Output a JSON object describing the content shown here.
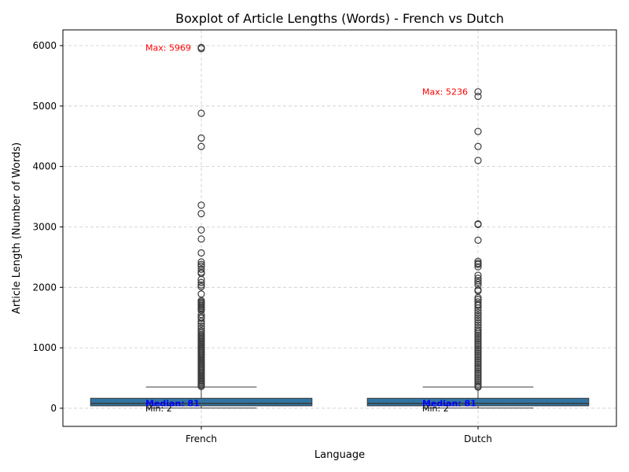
{
  "chart_data": {
    "type": "boxplot",
    "title": "Boxplot of Article Lengths (Words) - French vs Dutch",
    "xlabel": "Language",
    "ylabel": "Article Length (Number of Words)",
    "ylim": [
      -300,
      6260
    ],
    "yticks": [
      0,
      1000,
      2000,
      3000,
      4000,
      5000,
      6000
    ],
    "grid": true,
    "box_color": "#3274a1",
    "categories": [
      "French",
      "Dutch"
    ],
    "series": [
      {
        "category": "French",
        "min": 2,
        "q1": 40,
        "median": 81,
        "q3": 165,
        "whisker_high": 350,
        "max": 5969,
        "outliers": [
          5969,
          5950,
          4880,
          4470,
          4330,
          3360,
          3220,
          2950,
          2800,
          2570,
          2420,
          2380,
          2350,
          2300,
          2250,
          2230,
          2130,
          2080,
          2040,
          2010,
          1890,
          1780,
          1760,
          1740,
          1720,
          1700,
          1680,
          1660,
          1640,
          1620,
          1550,
          1510,
          1490,
          1440,
          1400,
          1360,
          1320,
          1280,
          1250,
          1220,
          1200,
          1180,
          1160,
          1140,
          1120,
          1100,
          1080,
          1060,
          1040,
          1020,
          1000,
          980,
          960,
          940,
          920,
          900,
          880,
          860,
          840,
          820,
          800,
          780,
          760,
          740,
          720,
          700,
          680,
          660,
          640,
          620,
          600,
          580,
          560,
          540,
          520,
          500,
          480,
          460,
          440,
          420,
          400,
          380,
          360
        ],
        "annotations": {
          "max": "Max: 5969",
          "median": "Median: 81",
          "min": "Min: 2"
        }
      },
      {
        "category": "Dutch",
        "min": 2,
        "q1": 40,
        "median": 81,
        "q3": 165,
        "whisker_high": 350,
        "max": 5236,
        "outliers": [
          5236,
          5160,
          4580,
          4330,
          4100,
          3050,
          3040,
          2780,
          2430,
          2400,
          2380,
          2340,
          2200,
          2150,
          2110,
          2080,
          2040,
          1960,
          1940,
          1830,
          1800,
          1760,
          1720,
          1700,
          1660,
          1620,
          1580,
          1540,
          1500,
          1460,
          1420,
          1380,
          1340,
          1300,
          1270,
          1240,
          1210,
          1180,
          1150,
          1120,
          1090,
          1060,
          1030,
          1000,
          970,
          940,
          910,
          880,
          850,
          820,
          790,
          760,
          730,
          700,
          670,
          640,
          610,
          580,
          550,
          520,
          490,
          460,
          430,
          400,
          370,
          350
        ],
        "annotations": {
          "max": "Max: 5236",
          "median": "Median: 81",
          "min": "Min: 2"
        }
      }
    ]
  }
}
